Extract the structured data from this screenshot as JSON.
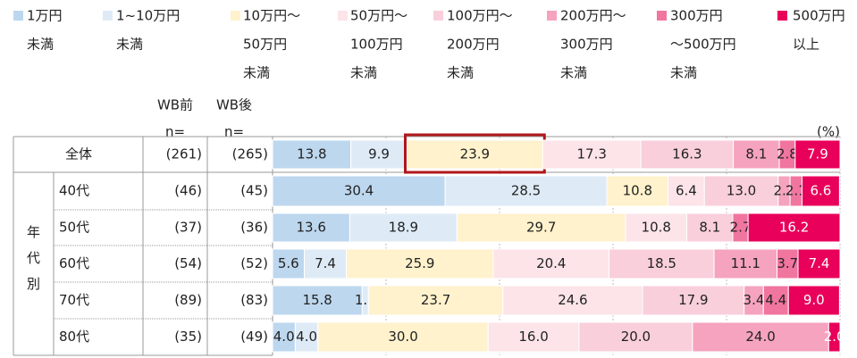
{
  "chart_data": {
    "type": "stacked_bar",
    "unit": "(%)",
    "before_header": [
      "WB前",
      "n="
    ],
    "after_header": [
      "WB後",
      "n="
    ],
    "group": "年代別",
    "categories": [
      "全体",
      "40代",
      "50代",
      "60代",
      "70代",
      "80代"
    ],
    "n_before": [
      "(261)",
      "(46)",
      "(37)",
      "(54)",
      "(89)",
      "(35)"
    ],
    "n_after": [
      "(265)",
      "(45)",
      "(36)",
      "(52)",
      "(83)",
      "(49)"
    ],
    "xlim": [
      0,
      100
    ],
    "xticks": [
      0,
      20,
      40,
      60,
      80,
      100
    ],
    "highlight": {
      "series": 2,
      "row": 0,
      "color": "#b0161b"
    },
    "series": [
      {
        "name": [
          "1万円",
          "未満"
        ],
        "color": "#bdd7ee",
        "values": [
          13.8,
          30.4,
          13.6,
          5.6,
          15.8,
          4.0
        ],
        "value_labels": [
          "13.8",
          "30.4",
          "13.6",
          "5.6",
          "15.8",
          "4.0"
        ]
      },
      {
        "name": [
          "1~10万円",
          "未満"
        ],
        "color": "#deebf7",
        "values": [
          9.9,
          28.5,
          18.9,
          7.4,
          1.1,
          4.0
        ],
        "value_labels": [
          "9.9",
          "28.5",
          "18.9",
          "7.4",
          "1.1",
          "4.0"
        ]
      },
      {
        "name": [
          "10万円～",
          "50万円",
          "未満"
        ],
        "color": "#fff2cc",
        "values": [
          23.9,
          10.8,
          29.7,
          25.9,
          23.7,
          30.0
        ],
        "value_labels": [
          "23.9",
          "10.8",
          "29.7",
          "25.9",
          "23.7",
          "30.0"
        ]
      },
      {
        "name": [
          "50万円～",
          "100万円",
          "未満"
        ],
        "color": "#fce4e8",
        "values": [
          17.3,
          6.4,
          10.8,
          20.4,
          24.6,
          16.0
        ],
        "value_labels": [
          "17.3",
          "6.4",
          "10.8",
          "20.4",
          "24.6",
          "16.0"
        ]
      },
      {
        "name": [
          "100万円～",
          "200万円",
          "未満"
        ],
        "color": "#f9cfdc",
        "values": [
          16.3,
          13.0,
          8.1,
          18.5,
          17.9,
          20.0
        ],
        "value_labels": [
          "16.3",
          "13.0",
          "8.1",
          "18.5",
          "17.9",
          "20.0"
        ]
      },
      {
        "name": [
          "200万円～",
          "300万円",
          "未満"
        ],
        "color": "#f5a3bf",
        "values": [
          8.1,
          2.1,
          null,
          11.1,
          3.4,
          24.0
        ],
        "value_labels": [
          "8.1",
          "2.1",
          null,
          "11.1",
          "3.4",
          "24.0"
        ]
      },
      {
        "name": [
          "300万円",
          "～500万円",
          "未満"
        ],
        "color": "#f0759f",
        "values": [
          2.8,
          2.1,
          2.7,
          3.7,
          4.4,
          null
        ],
        "value_labels": [
          "2.8",
          "2.1",
          "2.7",
          "3.7",
          "4.4",
          null
        ]
      },
      {
        "name": [
          "500万円",
          "以上"
        ],
        "color": "#e8005a",
        "values": [
          7.9,
          6.6,
          16.2,
          7.4,
          9.0,
          2.0
        ],
        "value_labels": [
          "7.9",
          "6.6",
          "16.2",
          "7.4",
          "9.0",
          "2.0"
        ]
      }
    ]
  }
}
